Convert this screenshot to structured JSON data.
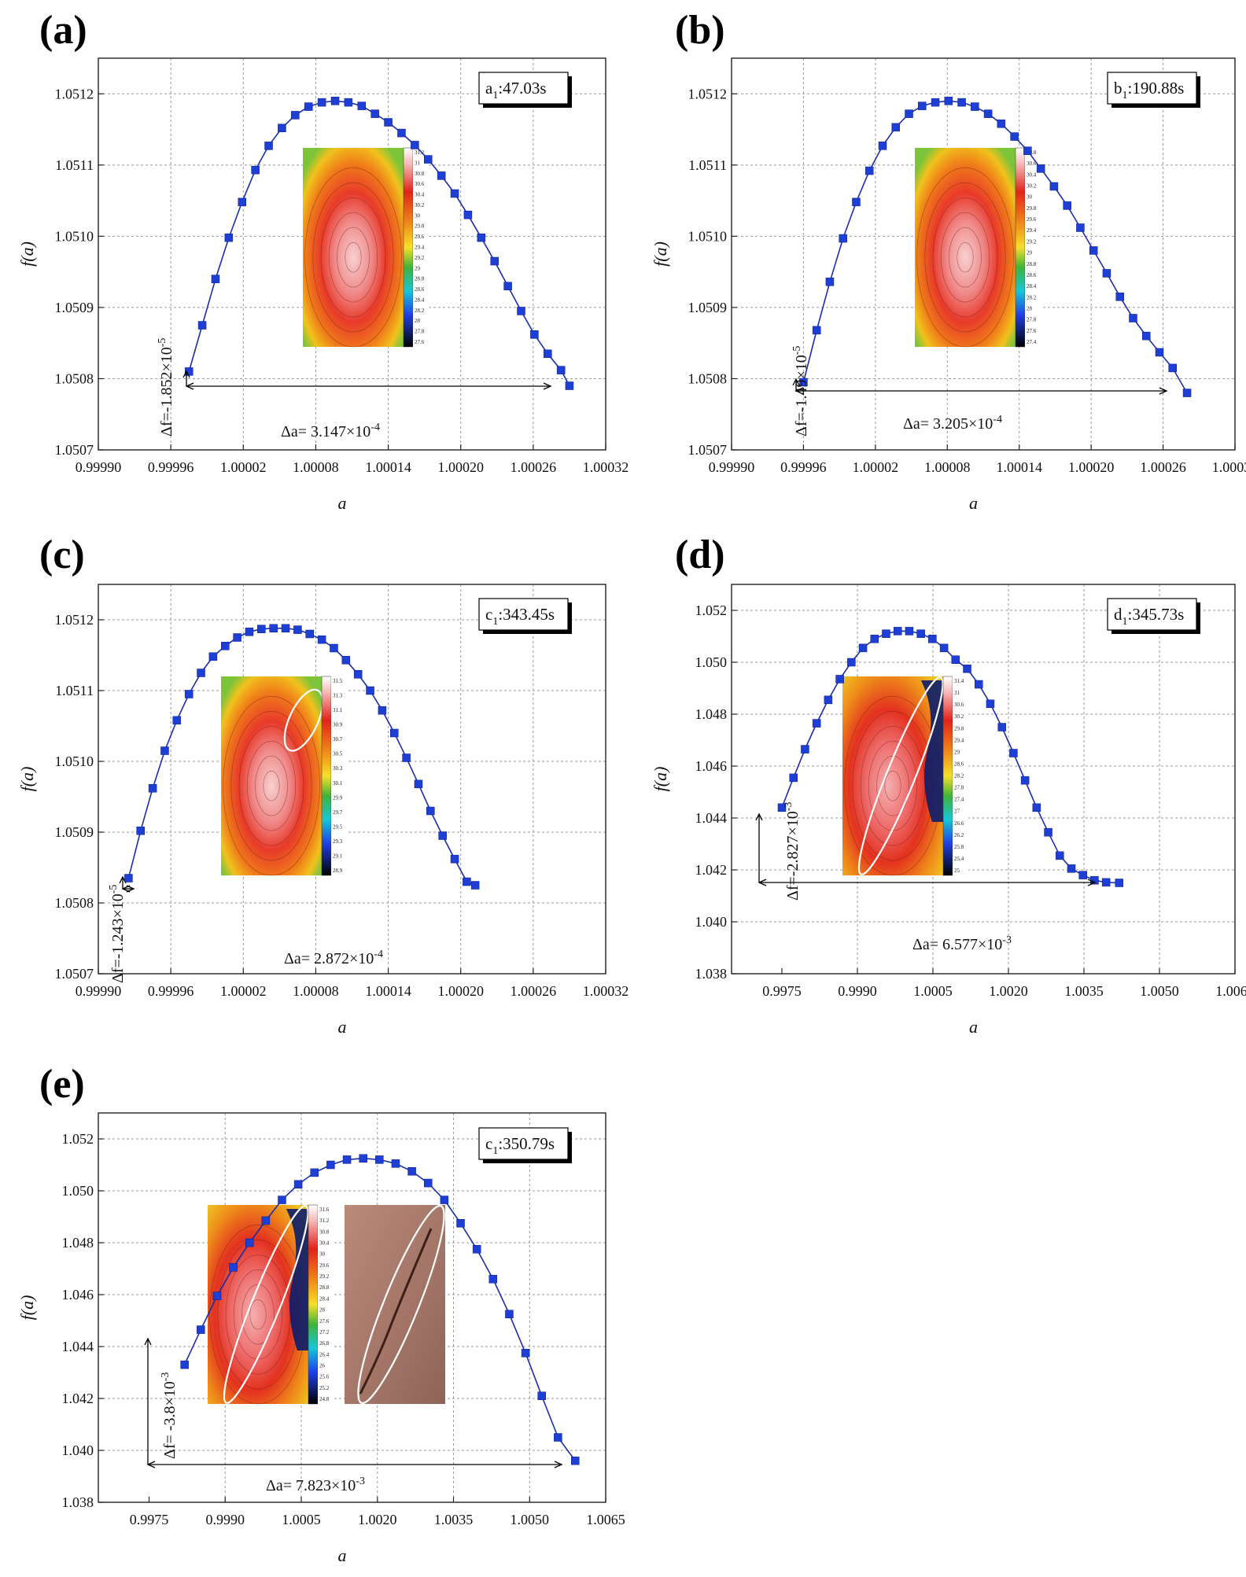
{
  "chart_data": [
    {
      "type": "line",
      "panel": "(a)",
      "time_label": "a1:47.03s",
      "time_parts": {
        "prefix": "a",
        "sub": "1",
        "rest": ":47.03s"
      },
      "xlabel": "a",
      "ylabel": "f(a)",
      "xlim": [
        0.9999,
        1.00032
      ],
      "ylim": [
        1.0507,
        1.05125
      ],
      "x_ticks": [
        "0.99990",
        "0.99996",
        "1.00002",
        "1.00008",
        "1.00014",
        "1.00020",
        "1.00026",
        "1.00032"
      ],
      "y_ticks": [
        "1.0507",
        "1.0508",
        "1.0509",
        "1.0510",
        "1.0511",
        "1.0512"
      ],
      "grid": true,
      "delta_f": {
        "prefix": "Δf=-1.852×10",
        "exp": "-5"
      },
      "delta_a": {
        "prefix": "Δa= 3.147×10",
        "exp": "-4"
      },
      "colorbar_labels": [
        "31.2",
        "31",
        "30.8",
        "30.6",
        "30.4",
        "30.2",
        "30",
        "29.8",
        "29.6",
        "29.4",
        "29.2",
        "29",
        "28.8",
        "28.6",
        "28.4",
        "28.2",
        "28",
        "27.8",
        "27.6"
      ],
      "series": [
        {
          "x": [
            0.999975,
            0.999986,
            0.999997,
            1.000008,
            1.000019,
            1.00003,
            1.000041,
            1.000052,
            1.000063,
            1.000074,
            1.000085,
            1.000096,
            1.000107,
            1.000118,
            1.000129,
            1.00014,
            1.000151,
            1.000162,
            1.000173,
            1.000184,
            1.000195,
            1.000206,
            1.000217,
            1.000228,
            1.000239,
            1.00025,
            1.000261,
            1.000272,
            1.000283,
            1.00029
          ],
          "y": [
            1.05081,
            1.050875,
            1.05094,
            1.050998,
            1.051048,
            1.051093,
            1.051127,
            1.051152,
            1.05117,
            1.051182,
            1.051188,
            1.05119,
            1.051188,
            1.051183,
            1.051172,
            1.05116,
            1.051145,
            1.051128,
            1.051108,
            1.051085,
            1.05106,
            1.05103,
            1.050998,
            1.050965,
            1.05093,
            1.050895,
            1.050862,
            1.050835,
            1.050812,
            1.05079
          ]
        }
      ]
    },
    {
      "type": "line",
      "panel": "(b)",
      "time_label": "b1:190.88s",
      "time_parts": {
        "prefix": "b",
        "sub": "1",
        "rest": ":190.88s"
      },
      "xlabel": "a",
      "ylabel": "f(a)",
      "xlim": [
        0.9999,
        1.00032
      ],
      "ylim": [
        1.0507,
        1.05125
      ],
      "x_ticks": [
        "0.99990",
        "0.99996",
        "1.00002",
        "1.00008",
        "1.00014",
        "1.00020",
        "1.00026",
        "1.00032"
      ],
      "y_ticks": [
        "1.0507",
        "1.0508",
        "1.0509",
        "1.0510",
        "1.0511",
        "1.0512"
      ],
      "grid": true,
      "delta_f": {
        "prefix": "Δf=-1.49×10",
        "exp": "-5"
      },
      "delta_a": {
        "prefix": "Δa= 3.205×10",
        "exp": "-4"
      },
      "colorbar_labels": [
        "30.8",
        "30.6",
        "30.4",
        "30.2",
        "30",
        "29.8",
        "29.6",
        "29.4",
        "29.2",
        "29",
        "28.8",
        "28.6",
        "28.4",
        "28.2",
        "28",
        "27.8",
        "27.6",
        "27.4"
      ],
      "series": [
        {
          "x": [
            0.99996,
            0.999971,
            0.999982,
            0.999993,
            1.000004,
            1.000015,
            1.000026,
            1.000037,
            1.000048,
            1.000059,
            1.00007,
            1.000081,
            1.000092,
            1.000103,
            1.000114,
            1.000125,
            1.000136,
            1.000147,
            1.000158,
            1.000169,
            1.00018,
            1.000191,
            1.000202,
            1.000213,
            1.000224,
            1.000235,
            1.000246,
            1.000257,
            1.000268,
            1.00028
          ],
          "y": [
            1.050795,
            1.050868,
            1.050936,
            1.050997,
            1.051048,
            1.051092,
            1.051127,
            1.051153,
            1.051172,
            1.051183,
            1.051188,
            1.05119,
            1.051188,
            1.051182,
            1.051172,
            1.051158,
            1.05114,
            1.05112,
            1.051095,
            1.05107,
            1.051043,
            1.051012,
            1.05098,
            1.050948,
            1.050915,
            1.050885,
            1.05086,
            1.050837,
            1.050815,
            1.05078
          ]
        }
      ]
    },
    {
      "type": "line",
      "panel": "(c)",
      "time_label": "c1:343.45s",
      "time_parts": {
        "prefix": "c",
        "sub": "1",
        "rest": ":343.45s"
      },
      "xlabel": "a",
      "ylabel": "f(a)",
      "xlim": [
        0.9999,
        1.00032
      ],
      "ylim": [
        1.0507,
        1.05125
      ],
      "x_ticks": [
        "0.99990",
        "0.99996",
        "1.00002",
        "1.00008",
        "1.00014",
        "1.00020",
        "1.00026",
        "1.00032"
      ],
      "y_ticks": [
        "1.0507",
        "1.0508",
        "1.0509",
        "1.0510",
        "1.0511",
        "1.0512"
      ],
      "grid": true,
      "delta_f": {
        "prefix": "Δf=-1.243×10",
        "exp": "-5"
      },
      "delta_a": {
        "prefix": "Δa= 2.872×10",
        "exp": "-4"
      },
      "colorbar_labels": [
        "31.5",
        "31.3",
        "31.1",
        "30.9",
        "30.7",
        "30.5",
        "30.3",
        "30.1",
        "29.9",
        "29.7",
        "29.5",
        "29.3",
        "29.1",
        "28.9"
      ],
      "series": [
        {
          "x": [
            0.999925,
            0.999935,
            0.999945,
            0.999955,
            0.999965,
            0.999975,
            0.999985,
            0.999995,
            1.000005,
            1.000015,
            1.000025,
            1.000035,
            1.000045,
            1.000055,
            1.000065,
            1.000075,
            1.000085,
            1.000095,
            1.000105,
            1.000115,
            1.000125,
            1.000135,
            1.000145,
            1.000155,
            1.000165,
            1.000175,
            1.000185,
            1.000195,
            1.000205,
            1.000212
          ],
          "y": [
            1.050835,
            1.050902,
            1.050962,
            1.051015,
            1.051058,
            1.051095,
            1.051125,
            1.051148,
            1.051163,
            1.051175,
            1.051183,
            1.051187,
            1.051188,
            1.051188,
            1.051186,
            1.05118,
            1.051172,
            1.05116,
            1.051143,
            1.051123,
            1.0511,
            1.051072,
            1.05104,
            1.051005,
            1.050968,
            1.05093,
            1.050895,
            1.050862,
            1.05083,
            1.050825
          ]
        }
      ]
    },
    {
      "type": "line",
      "panel": "(d)",
      "time_label": "d1:345.73s",
      "time_parts": {
        "prefix": "d",
        "sub": "1",
        "rest": ":345.73s"
      },
      "xlabel": "a",
      "ylabel": "f(a)",
      "xlim": [
        0.9965,
        1.0065
      ],
      "ylim": [
        1.038,
        1.053
      ],
      "x_ticks": [
        "0.9975",
        "0.9990",
        "1.0005",
        "1.0020",
        "1.0035",
        "1.0050",
        "1.0065"
      ],
      "y_ticks": [
        "1.038",
        "1.040",
        "1.042",
        "1.044",
        "1.046",
        "1.048",
        "1.050",
        "1.052"
      ],
      "grid": true,
      "delta_f": {
        "prefix": "Δf=-2.827×10",
        "exp": "-3"
      },
      "delta_a": {
        "prefix": "Δa= 6.577×10",
        "exp": "-3"
      },
      "colorbar_labels": [
        "31.4",
        "31",
        "30.6",
        "30.2",
        "29.8",
        "29.4",
        "29",
        "28.6",
        "28.2",
        "27.8",
        "27.4",
        "27",
        "26.6",
        "26.2",
        "25.8",
        "25.4",
        "25"
      ],
      "series": [
        {
          "x": [
            0.9975,
            0.99773,
            0.99796,
            0.99819,
            0.99842,
            0.99865,
            0.99888,
            0.99911,
            0.99934,
            0.99957,
            0.9998,
            1.00003,
            1.00026,
            1.00049,
            1.00072,
            1.00095,
            1.00118,
            1.00141,
            1.00164,
            1.00187,
            1.0021,
            1.00233,
            1.00256,
            1.00279,
            1.00302,
            1.00325,
            1.00348,
            1.00371,
            1.00394,
            1.0042
          ],
          "y": [
            1.0444,
            1.04555,
            1.04665,
            1.04765,
            1.04855,
            1.04935,
            1.05,
            1.05055,
            1.0509,
            1.0511,
            1.0512,
            1.0512,
            1.0511,
            1.0509,
            1.05055,
            1.0501,
            1.04975,
            1.04915,
            1.0484,
            1.0475,
            1.0465,
            1.04545,
            1.0444,
            1.04345,
            1.04255,
            1.04205,
            1.0418,
            1.0416,
            1.04152,
            1.0415
          ]
        }
      ]
    },
    {
      "type": "line",
      "panel": "(e)",
      "time_label": "c1:350.79s",
      "time_parts": {
        "prefix": "c",
        "sub": "1",
        "rest": ":350.79s"
      },
      "xlabel": "a",
      "ylabel": "f(a)",
      "xlim": [
        0.9965,
        1.0065
      ],
      "ylim": [
        1.038,
        1.053
      ],
      "x_ticks": [
        "0.9975",
        "0.9990",
        "1.0005",
        "1.0020",
        "1.0035",
        "1.0050",
        "1.0065"
      ],
      "y_ticks": [
        "1.038",
        "1.040",
        "1.042",
        "1.044",
        "1.046",
        "1.048",
        "1.050",
        "1.052"
      ],
      "grid": true,
      "delta_f": {
        "prefix": "Δf= -3.8×10",
        "exp": "-3"
      },
      "delta_a": {
        "prefix": "Δa= 7.823×10",
        "exp": "-3"
      },
      "colorbar_labels": [
        "31.6",
        "31.2",
        "30.8",
        "30.4",
        "30",
        "29.6",
        "29.2",
        "28.8",
        "28.4",
        "28",
        "27.6",
        "27.2",
        "26.8",
        "26.4",
        "26",
        "25.6",
        "25.2",
        "24.8"
      ],
      "series": [
        {
          "x": [
            0.9982,
            0.99852,
            0.99884,
            0.99916,
            0.99948,
            0.9998,
            1.00012,
            1.00044,
            1.00076,
            1.00108,
            1.0014,
            1.00172,
            1.00204,
            1.00236,
            1.00268,
            1.003,
            1.00332,
            1.00364,
            1.00396,
            1.00428,
            1.0046,
            1.00492,
            1.00524,
            1.00556,
            1.0059
          ],
          "y": [
            1.0433,
            1.04465,
            1.04595,
            1.04705,
            1.048,
            1.04885,
            1.04965,
            1.05025,
            1.0507,
            1.051,
            1.0512,
            1.05125,
            1.0512,
            1.05105,
            1.05075,
            1.0503,
            1.04965,
            1.04875,
            1.04775,
            1.0466,
            1.04525,
            1.04375,
            1.0421,
            1.0405,
            1.0396
          ]
        }
      ]
    }
  ]
}
